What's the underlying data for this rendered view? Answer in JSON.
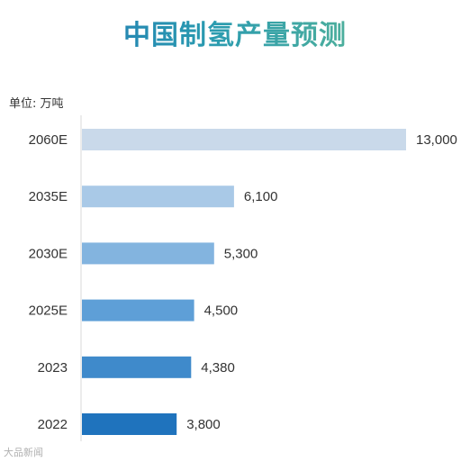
{
  "chart_data": {
    "type": "bar",
    "orientation": "horizontal",
    "title": "中国制氢产量预测",
    "unit_label": "单位: 万吨",
    "categories": [
      "2060E",
      "2035E",
      "2030E",
      "2025E",
      "2023",
      "2022"
    ],
    "values": [
      13000,
      6100,
      5300,
      4500,
      4380,
      3800
    ],
    "value_labels": [
      "13,000",
      "6,100",
      "5,300",
      "4,500",
      "4,380",
      "3,800"
    ],
    "bar_colors": [
      "#c9d9ea",
      "#a9c9e7",
      "#83b4df",
      "#5e9fd7",
      "#3f8acb",
      "#1f73bd"
    ],
    "xlim": [
      0,
      13000
    ],
    "grid": false,
    "legend": "none"
  },
  "watermark": "大品新闻"
}
